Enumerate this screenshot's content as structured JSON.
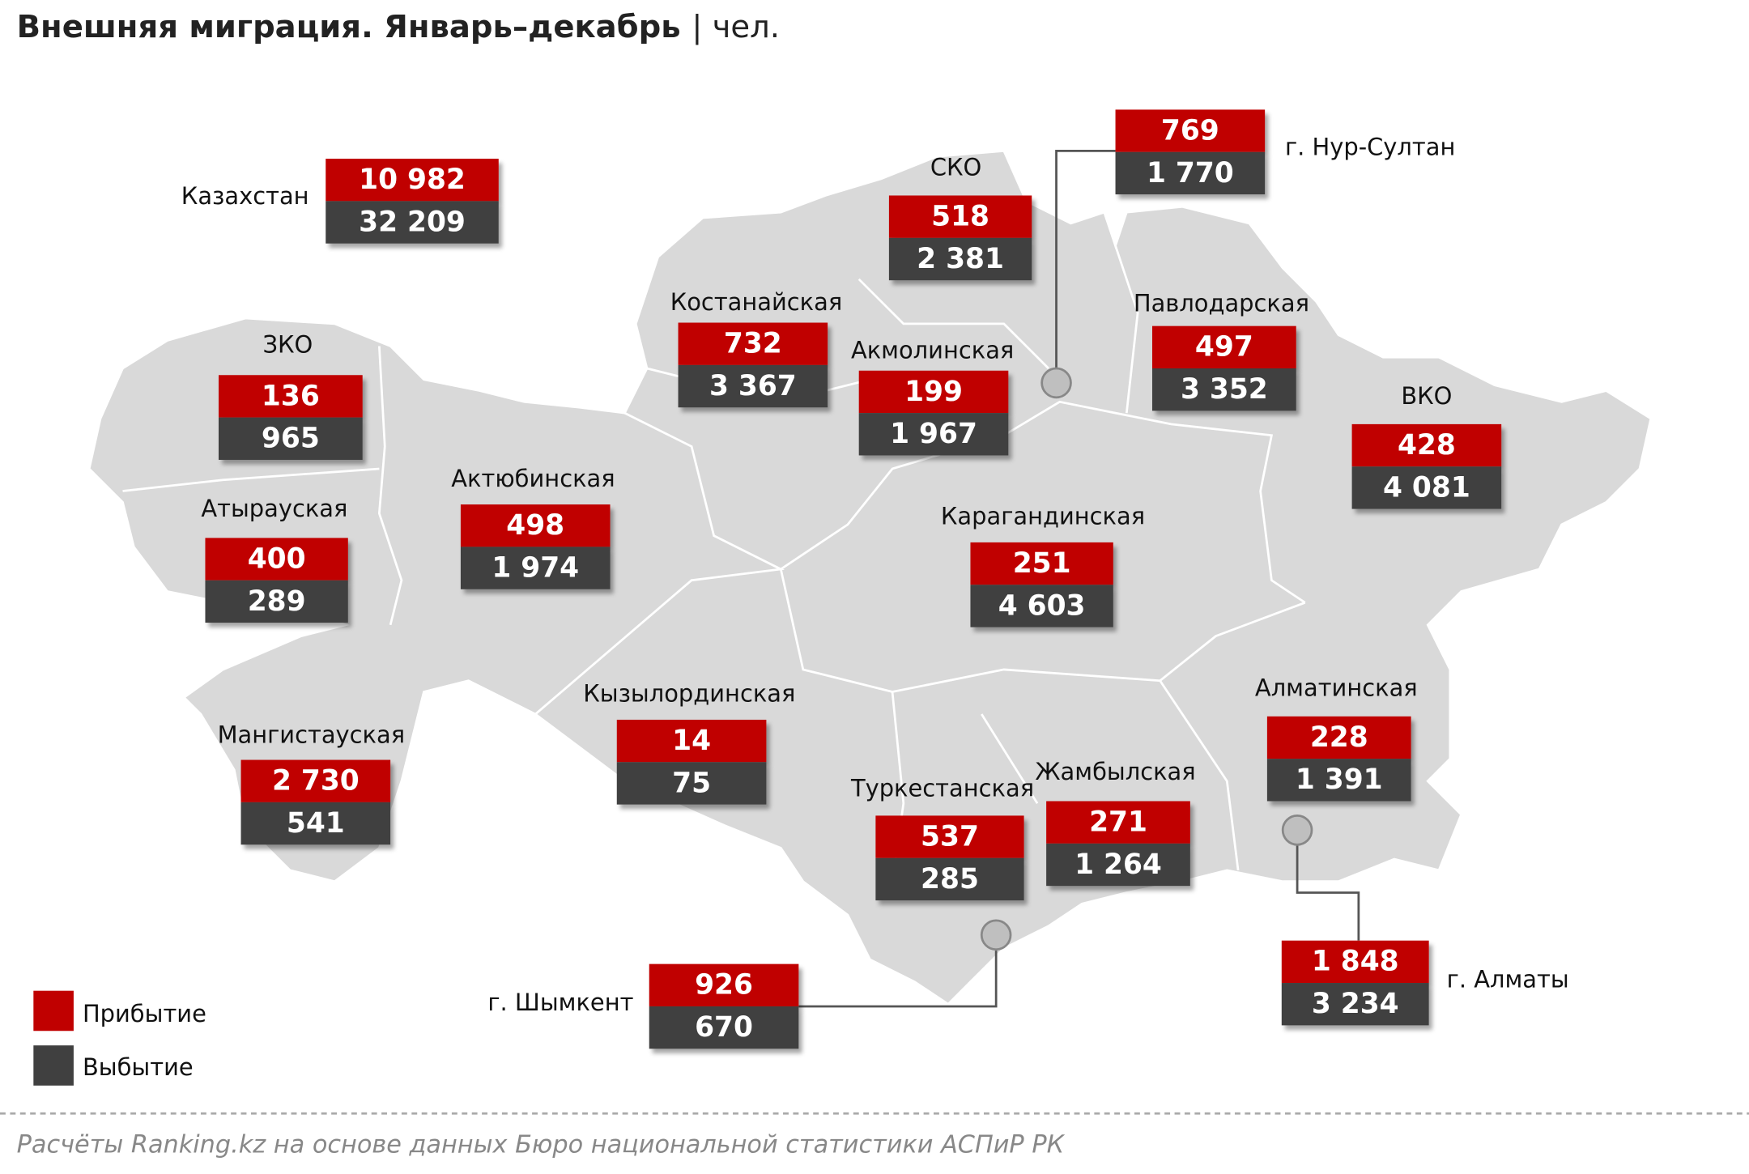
{
  "header": {
    "title": "Внешняя миграция. Январь–декабрь",
    "unit": "| чел."
  },
  "regions": [
    {
      "name": "Казахстан",
      "arrival": "10 982",
      "departure": "32 209"
    },
    {
      "name": "ЗКО",
      "arrival": "136",
      "departure": "965"
    },
    {
      "name": "Атырауская",
      "arrival": "400",
      "departure": "289"
    },
    {
      "name": "Мангистауская",
      "arrival": "2 730",
      "departure": "541"
    },
    {
      "name": "Актюбинская",
      "arrival": "498",
      "departure": "1 974"
    },
    {
      "name": "Костанайская",
      "arrival": "732",
      "departure": "3 367"
    },
    {
      "name": "СКО",
      "arrival": "518",
      "departure": "2 381"
    },
    {
      "name": "Акмолинская",
      "arrival": "199",
      "departure": "1 967"
    },
    {
      "name": "г. Нур-Султан",
      "arrival": "769",
      "departure": "1 770"
    },
    {
      "name": "Павлодарская",
      "arrival": "497",
      "departure": "3 352"
    },
    {
      "name": "ВКО",
      "arrival": "428",
      "departure": "4 081"
    },
    {
      "name": "Карагандинская",
      "arrival": "251",
      "departure": "4 603"
    },
    {
      "name": "Кызылординская",
      "arrival": "14",
      "departure": "75"
    },
    {
      "name": "Алматинская",
      "arrival": "228",
      "departure": "1 391"
    },
    {
      "name": "Туркестанская",
      "arrival": "537",
      "departure": "285"
    },
    {
      "name": "Жамбылская",
      "arrival": "271",
      "departure": "1 264"
    },
    {
      "name": "г. Шымкент",
      "arrival": "926",
      "departure": "670"
    },
    {
      "name": "г. Алматы",
      "arrival": "1 848",
      "departure": "3 234"
    }
  ],
  "legend": {
    "arrival": "Прибытие",
    "departure": "Выбытие"
  },
  "source": "Расчёты Ranking.kz на основе данных Бюро национальной статистики АСПиР РК"
}
